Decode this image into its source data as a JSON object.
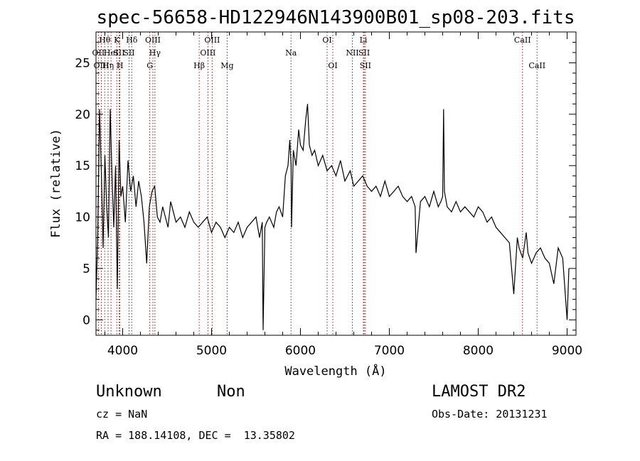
{
  "chart_data": {
    "type": "line",
    "title": "spec-56658-HD122946N143900B01_sp08-203.fits",
    "xlabel": "Wavelength (Å)",
    "ylabel": "Flux (relative)",
    "xlim": [
      3700,
      9100
    ],
    "ylim": [
      -1.5,
      28
    ],
    "xticks": [
      4000,
      5000,
      6000,
      7000,
      8000,
      9000
    ],
    "yticks": [
      0,
      5,
      10,
      15,
      20,
      25
    ],
    "series": [
      {
        "color": "#000000",
        "x": [
          3700,
          3720,
          3740,
          3760,
          3780,
          3800,
          3820,
          3840,
          3860,
          3880,
          3900,
          3920,
          3940,
          3960,
          3980,
          4000,
          4030,
          4060,
          4090,
          4120,
          4150,
          4180,
          4210,
          4240,
          4270,
          4300,
          4330,
          4360,
          4390,
          4420,
          4450,
          4480,
          4510,
          4540,
          4570,
          4600,
          4650,
          4700,
          4750,
          4800,
          4850,
          4900,
          4950,
          5000,
          5050,
          5100,
          5150,
          5200,
          5250,
          5300,
          5350,
          5400,
          5450,
          5500,
          5540,
          5570,
          5580,
          5600,
          5620,
          5650,
          5700,
          5730,
          5760,
          5800,
          5830,
          5860,
          5880,
          5895,
          5900,
          5920,
          5950,
          5980,
          6000,
          6030,
          6060,
          6080,
          6100,
          6130,
          6160,
          6200,
          6250,
          6300,
          6350,
          6400,
          6450,
          6500,
          6560,
          6600,
          6650,
          6700,
          6750,
          6800,
          6850,
          6900,
          6950,
          7000,
          7050,
          7100,
          7150,
          7200,
          7250,
          7290,
          7300,
          7350,
          7400,
          7450,
          7500,
          7550,
          7580,
          7600,
          7610,
          7620,
          7650,
          7700,
          7750,
          7800,
          7850,
          7900,
          7950,
          8000,
          8050,
          8100,
          8150,
          8200,
          8250,
          8300,
          8350,
          8400,
          8440,
          8460,
          8500,
          8540,
          8560,
          8600,
          8650,
          8700,
          8750,
          8800,
          8850,
          8900,
          8950,
          9000,
          9020
        ],
        "y": [
          2.0,
          8.5,
          20.5,
          14.5,
          7.0,
          16.0,
          11.0,
          8.0,
          20.5,
          14.0,
          9.0,
          15.0,
          3.0,
          17.5,
          12.0,
          13.0,
          9.5,
          15.5,
          12.5,
          14.0,
          11.0,
          13.5,
          12.0,
          9.5,
          5.5,
          11.0,
          12.5,
          13.0,
          10.0,
          9.5,
          11.0,
          10.0,
          9.0,
          11.5,
          10.5,
          9.5,
          10.0,
          9.0,
          10.5,
          9.5,
          9.0,
          9.5,
          10.0,
          8.5,
          9.5,
          9.0,
          8.0,
          9.0,
          8.5,
          9.5,
          8.0,
          9.0,
          9.5,
          10.0,
          8.0,
          9.5,
          -1.0,
          9.0,
          9.5,
          10.0,
          9.0,
          10.5,
          11.0,
          10.0,
          14.0,
          15.0,
          17.5,
          15.0,
          9.0,
          16.5,
          15.0,
          18.5,
          17.0,
          16.5,
          19.5,
          21.0,
          17.0,
          16.0,
          16.5,
          15.0,
          16.0,
          14.5,
          15.0,
          14.0,
          15.5,
          13.5,
          14.5,
          13.0,
          13.5,
          14.0,
          13.0,
          12.5,
          13.0,
          12.0,
          13.5,
          12.0,
          12.5,
          13.0,
          12.0,
          11.5,
          12.0,
          11.0,
          6.5,
          11.5,
          12.0,
          11.0,
          12.5,
          11.0,
          11.5,
          12.0,
          20.5,
          12.5,
          11.0,
          10.5,
          11.5,
          10.5,
          11.0,
          10.5,
          10.0,
          11.0,
          10.5,
          9.5,
          10.0,
          9.0,
          8.5,
          8.0,
          7.5,
          2.5,
          8.0,
          7.0,
          6.0,
          8.5,
          6.5,
          5.5,
          6.5,
          7.0,
          6.0,
          5.5,
          3.5,
          7.0,
          6.0,
          0.0,
          5.0
        ]
      }
    ],
    "spectral_lines": [
      {
        "label": "OII",
        "x": 3727,
        "row": 1
      },
      {
        "label": "OIII",
        "x": 3760,
        "row": 2
      },
      {
        "label": "Hθ",
        "x": 3798,
        "row": 0
      },
      {
        "label": "Hη",
        "x": 3836,
        "row": 2
      },
      {
        "label": "HeI",
        "x": 3869,
        "row": 1
      },
      {
        "label": "K",
        "x": 3934,
        "row": 0
      },
      {
        "label": "SII",
        "x": 3960,
        "row": 1
      },
      {
        "label": "H",
        "x": 3969,
        "row": 2
      },
      {
        "label": "SII",
        "x": 4072,
        "row": 1
      },
      {
        "label": "Hδ",
        "x": 4102,
        "row": 0
      },
      {
        "label": "G",
        "x": 4305,
        "row": 2
      },
      {
        "label": "OIII",
        "x": 4340,
        "row": 0
      },
      {
        "label": "Hγ",
        "x": 4363,
        "row": 1
      },
      {
        "label": "Hβ",
        "x": 4861,
        "row": 2
      },
      {
        "label": "OIII",
        "x": 4959,
        "row": 1
      },
      {
        "label": "OIII",
        "x": 5007,
        "row": 0
      },
      {
        "label": "Mg",
        "x": 5175,
        "row": 2
      },
      {
        "label": "Na",
        "x": 5894,
        "row": 1
      },
      {
        "label": "OI",
        "x": 6300,
        "row": 0
      },
      {
        "label": "OI",
        "x": 6364,
        "row": 2
      },
      {
        "label": "NII",
        "x": 6584,
        "row": 1
      },
      {
        "label": "Li",
        "x": 6708,
        "row": 0
      },
      {
        "label": "SII",
        "x": 6717,
        "row": 1
      },
      {
        "label": "SII",
        "x": 6731,
        "row": 2
      },
      {
        "label": "CaII",
        "x": 8498,
        "row": 0
      },
      {
        "label": "CaII",
        "x": 8662,
        "row": 2
      }
    ],
    "line_marker_color": "#8b1a1a"
  },
  "footer": {
    "object_class": "Unknown",
    "subclass": "Non",
    "survey": "LAMOST DR2",
    "cz": "cz = NaN",
    "obs_date": "Obs-Date: 20131231",
    "coords": "RA = 188.14108, DEC =  13.35802"
  }
}
